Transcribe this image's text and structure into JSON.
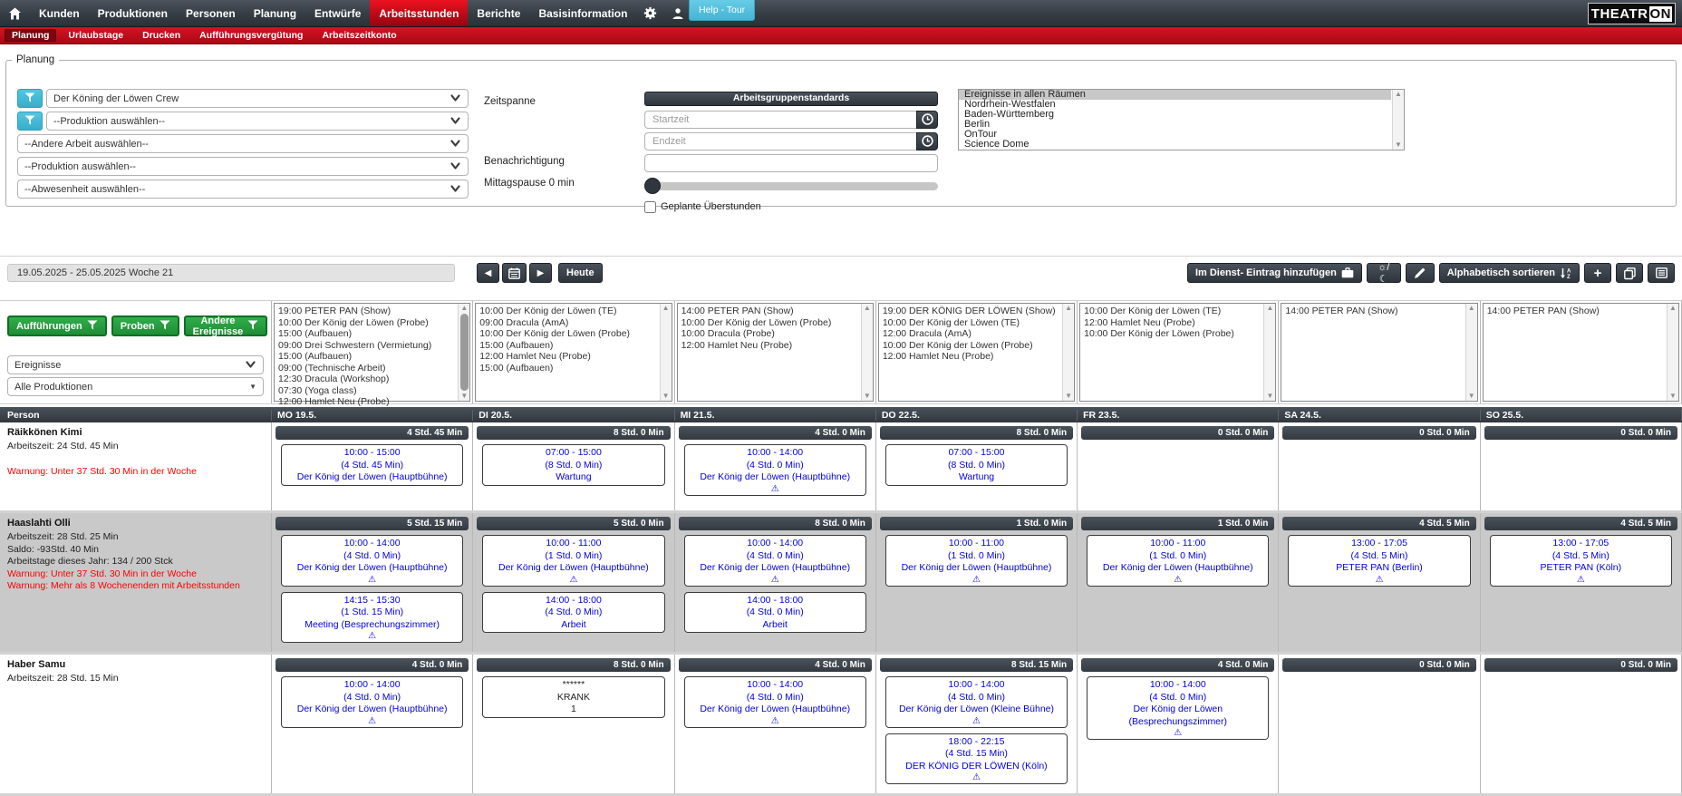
{
  "colors": {
    "navbar_dark": "#353c43",
    "accent_red": "#c00b16",
    "help_blue": "#45b4d4",
    "filter_cyan": "#45bcd9",
    "button_green": "#259a3e",
    "entry_blue": "#0202dd",
    "warning_red": "#ff0000",
    "bar_dark": "#3c434b",
    "row_alt_gray": "#c9c9c9"
  },
  "navbar": {
    "items": [
      "Kunden",
      "Produktionen",
      "Personen",
      "Planung",
      "Entwürfe",
      "Arbeitsstunden",
      "Berichte",
      "Basisinformation"
    ],
    "active": "Arbeitsstunden",
    "help_button": "Help - Tour",
    "logo_main": "THEATR",
    "logo_accent": "ON"
  },
  "subnav": {
    "items": [
      "Planung",
      "Urlaubstage",
      "Drucken",
      "Aufführungsvergütung",
      "Arbeitszeitkonto"
    ],
    "active": "Planung"
  },
  "filters": {
    "legend": "Planung",
    "selects": [
      {
        "value": "Der Köning der Löwen Crew",
        "filter_icon": true
      },
      {
        "value": "--Produktion auswählen--",
        "filter_icon": true
      },
      {
        "value": "--Andere Arbeit auswählen--",
        "filter_icon": false
      },
      {
        "value": "--Produktion auswählen--",
        "filter_icon": false
      },
      {
        "value": "--Abwesenheit auswählen--",
        "filter_icon": false
      }
    ],
    "zeitspanne_label": "Zeitspanne",
    "arbeitsgruppenstandards_button": "Arbeitsgruppenstandards",
    "startzeit_placeholder": "Startzeit",
    "endzeit_placeholder": "Endzeit",
    "benachrichtigung_label": "Benachrichtigung",
    "mittagspause_label": "Mittagspause 0 min",
    "ueberstunden_label": "Geplante Überstunden",
    "rooms": [
      "Ereignisse in allen Räumen",
      "Nordrhein-Westfalen",
      "Baden-Württemberg",
      "Berlin",
      "OnTour",
      "Science Dome"
    ],
    "rooms_selected": "Ereignisse in allen Räumen"
  },
  "week_toolbar": {
    "range": "19.05.2025 - 25.05.2025 Woche 21",
    "today_button": "Heute",
    "add_entry_button": "Im Dienst- Eintrag hinzufügen",
    "sunmoon_button": "☼/☾",
    "sort_button": "Alphabetisch sortieren",
    "plus_button": "+"
  },
  "event_filters": {
    "buttons": [
      "Aufführungen",
      "Proben",
      "Andere Ereignisse"
    ],
    "ereignisse_select": "Ereignisse",
    "produktionen_select": "Alle Produktionen"
  },
  "table": {
    "person_header": "Person"
  },
  "days": [
    {
      "label": "MO 19.5.",
      "scroll_thumb": true,
      "events": [
        "19:00 PETER PAN (Show)",
        "10:00 Der König der Löwen (Probe)",
        "15:00 (Aufbauen)",
        "09:00 Drei Schwestern (Vermietung)",
        "15:00 (Aufbauen)",
        "09:00 (Technische Arbeit)",
        "12:30 Dracula (Workshop)",
        "07:30 (Yoga class)",
        "12:00 Hamlet Neu (Probe)"
      ]
    },
    {
      "label": "DI 20.5.",
      "scroll_thumb": false,
      "events": [
        "10:00 Der König der Löwen (TE)",
        "09:00 Dracula (AmA)",
        "10:00 Der König der Löwen (Probe)",
        "15:00 (Aufbauen)",
        "12:00 Hamlet Neu (Probe)",
        "15:00 (Aufbauen)"
      ]
    },
    {
      "label": "MI 21.5.",
      "scroll_thumb": false,
      "events": [
        "14:00 PETER PAN (Show)",
        "10:00 Der König der Löwen (Probe)",
        "10:00 Dracula (Probe)",
        "12:00 Hamlet Neu (Probe)"
      ]
    },
    {
      "label": "DO 22.5.",
      "scroll_thumb": false,
      "events": [
        "19:00 DER KÖNIG DER LÖWEN (Show)",
        "10:00 Der König der Löwen (TE)",
        "12:00 Dracula (AmA)",
        "10:00 Der König der Löwen (Probe)",
        "12:00 Hamlet Neu (Probe)"
      ]
    },
    {
      "label": "FR 23.5.",
      "scroll_thumb": false,
      "events": [
        "10:00 Der König der Löwen (TE)",
        "12:00 Hamlet Neu (Probe)",
        "10:00 Der König der Löwen (Probe)"
      ]
    },
    {
      "label": "SA 24.5.",
      "scroll_thumb": false,
      "events": [
        "14:00 PETER PAN (Show)"
      ]
    },
    {
      "label": "SO 25.5.",
      "scroll_thumb": false,
      "events": [
        "14:00 PETER PAN (Show)"
      ]
    }
  ],
  "persons": [
    {
      "name": "Räikkönen Kimi",
      "info": [
        "Arbeitszeit: 24 Std. 45 Min"
      ],
      "warnings": [
        "Warnung: Unter 37 Std. 30 Min in der Woche"
      ],
      "days": [
        {
          "total": "4 Std. 45 Min",
          "entries": [
            {
              "lines": [
                "10:00 - 15:00",
                "(4 Std. 45 Min)",
                "Der König der Löwen (Hauptbühne)"
              ],
              "warning": false
            }
          ]
        },
        {
          "total": "8 Std. 0 Min",
          "entries": [
            {
              "lines": [
                "07:00 - 15:00",
                "(8 Std. 0 Min)",
                "Wartung"
              ],
              "warning": false
            }
          ]
        },
        {
          "total": "4 Std. 0 Min",
          "entries": [
            {
              "lines": [
                "10:00 - 14:00",
                "(4 Std. 0 Min)",
                "Der König der Löwen (Hauptbühne)"
              ],
              "warning": true
            }
          ]
        },
        {
          "total": "8 Std. 0 Min",
          "entries": [
            {
              "lines": [
                "07:00 - 15:00",
                "(8 Std. 0 Min)",
                "Wartung"
              ],
              "warning": false
            }
          ]
        },
        {
          "total": "0 Std. 0 Min",
          "entries": []
        },
        {
          "total": "0 Std. 0 Min",
          "entries": []
        },
        {
          "total": "0 Std. 0 Min",
          "entries": []
        }
      ]
    },
    {
      "name": "Haaslahti Olli",
      "info": [
        "Arbeitszeit: 28 Std. 25 Min",
        "Saldo: -93Std. 40 Min",
        "Arbeitstage dieses Jahr: 134 / 200 Stck"
      ],
      "warnings": [
        "Warnung: Unter 37 Std. 30 Min in der Woche",
        "Warnung: Mehr als 8 Wochenenden mit Arbeitsstunden"
      ],
      "days": [
        {
          "total": "5 Std. 15 Min",
          "entries": [
            {
              "lines": [
                "10:00 - 14:00",
                "(4 Std. 0 Min)",
                "Der König der Löwen (Hauptbühne)"
              ],
              "warning": true
            },
            {
              "lines": [
                "14:15 - 15:30",
                "(1 Std. 15 Min)",
                "Meeting (Besprechungszimmer)"
              ],
              "warning": true
            }
          ]
        },
        {
          "total": "5 Std. 0 Min",
          "entries": [
            {
              "lines": [
                "10:00 - 11:00",
                "(1 Std. 0 Min)",
                "Der König der Löwen (Hauptbühne)"
              ],
              "warning": true
            },
            {
              "lines": [
                "14:00 - 18:00",
                "(4 Std. 0 Min)",
                "Arbeit"
              ],
              "warning": false
            }
          ]
        },
        {
          "total": "8 Std. 0 Min",
          "entries": [
            {
              "lines": [
                "10:00 - 14:00",
                "(4 Std. 0 Min)",
                "Der König der Löwen (Hauptbühne)"
              ],
              "warning": true
            },
            {
              "lines": [
                "14:00 - 18:00",
                "(4 Std. 0 Min)",
                "Arbeit"
              ],
              "warning": false
            }
          ]
        },
        {
          "total": "1 Std. 0 Min",
          "entries": [
            {
              "lines": [
                "10:00 - 11:00",
                "(1 Std. 0 Min)",
                "Der König der Löwen (Hauptbühne)"
              ],
              "warning": true
            }
          ]
        },
        {
          "total": "1 Std. 0 Min",
          "entries": [
            {
              "lines": [
                "10:00 - 11:00",
                "(1 Std. 0 Min)",
                "Der König der Löwen (Hauptbühne)"
              ],
              "warning": true
            }
          ]
        },
        {
          "total": "4 Std. 5 Min",
          "entries": [
            {
              "lines": [
                "13:00 - 17:05",
                "(4 Std. 5 Min)",
                "PETER PAN (Berlin)"
              ],
              "warning": true
            }
          ]
        },
        {
          "total": "4 Std. 5 Min",
          "entries": [
            {
              "lines": [
                "13:00 - 17:05",
                "(4 Std. 5 Min)",
                "PETER PAN (Köln)"
              ],
              "warning": true
            }
          ]
        }
      ]
    },
    {
      "name": "Haber Samu",
      "info": [
        "Arbeitszeit: 28 Std. 15 Min"
      ],
      "warnings": [],
      "days": [
        {
          "total": "4 Std. 0 Min",
          "entries": [
            {
              "lines": [
                "10:00 - 14:00",
                "(4 Std. 0 Min)",
                "Der König der Löwen (Hauptbühne)"
              ],
              "warning": true
            }
          ]
        },
        {
          "total": "8 Std. 0 Min",
          "entries": [
            {
              "lines": [
                "******",
                "KRANK",
                "1"
              ],
              "warning": false,
              "plain": true
            }
          ]
        },
        {
          "total": "4 Std. 0 Min",
          "entries": [
            {
              "lines": [
                "10:00 - 14:00",
                "(4 Std. 0 Min)",
                "Der König der Löwen (Hauptbühne)"
              ],
              "warning": true
            }
          ]
        },
        {
          "total": "8 Std. 15 Min",
          "entries": [
            {
              "lines": [
                "10:00 - 14:00",
                "(4 Std. 0 Min)",
                "Der König der Löwen (Kleine Bühne)"
              ],
              "warning": true
            },
            {
              "lines": [
                "18:00 - 22:15",
                "(4 Std. 15 Min)",
                "DER KÖNIG DER LÖWEN (Köln)"
              ],
              "warning": true
            }
          ]
        },
        {
          "total": "4 Std. 0 Min",
          "entries": [
            {
              "lines": [
                "10:00 - 14:00",
                "(4 Std. 0 Min)",
                "Der König der Löwen (Besprechungszimmer)"
              ],
              "warning": true
            }
          ]
        },
        {
          "total": "0 Std. 0 Min",
          "entries": []
        },
        {
          "total": "0 Std. 0 Min",
          "entries": []
        }
      ]
    }
  ]
}
